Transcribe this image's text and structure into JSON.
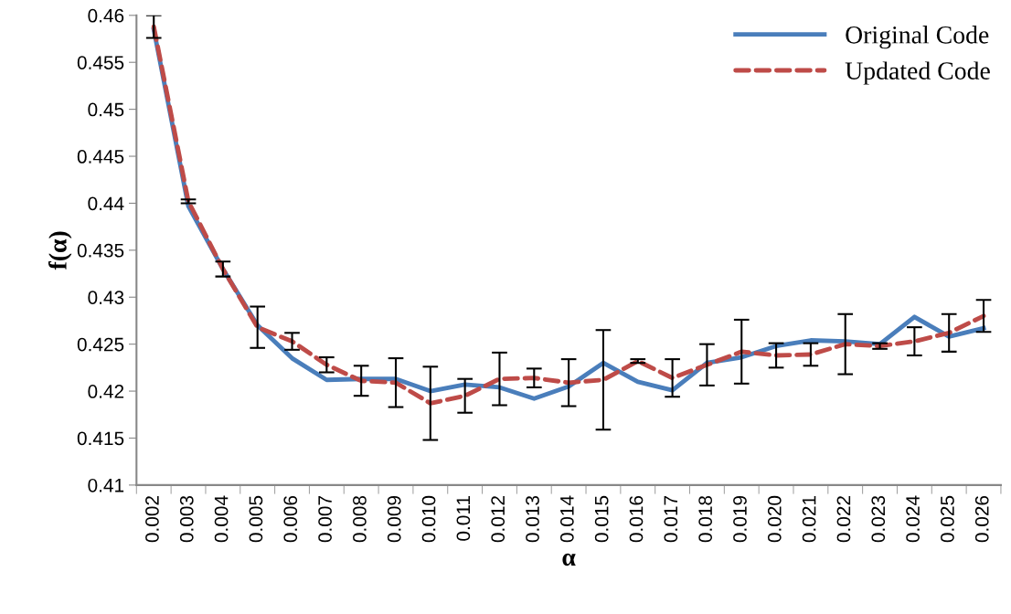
{
  "chart_data": {
    "type": "line",
    "xlabel": "α",
    "ylabel": "f(α)",
    "categories": [
      "0.002",
      "0.003",
      "0.004",
      "0.005",
      "0.006",
      "0.007",
      "0.008",
      "0.009",
      "0.010",
      "0.011",
      "0.012",
      "0.013",
      "0.014",
      "0.015",
      "0.016",
      "0.017",
      "0.018",
      "0.019",
      "0.020",
      "0.021",
      "0.022",
      "0.023",
      "0.024",
      "0.025",
      "0.026"
    ],
    "series": [
      {
        "name": "Original Code",
        "color": "#4a7ebb",
        "line_style": "solid",
        "values": [
          0.4585,
          0.4397,
          0.433,
          0.427,
          0.4235,
          0.4212,
          0.4213,
          0.4213,
          0.42,
          0.4207,
          0.4204,
          0.4192,
          0.4205,
          0.423,
          0.421,
          0.4201,
          0.423,
          0.4236,
          0.4248,
          0.4254,
          0.4253,
          0.425,
          0.4279,
          0.4258,
          0.4267
        ]
      },
      {
        "name": "Updated Code",
        "color": "#be4b48",
        "line_style": "dashed",
        "values": [
          0.4588,
          0.4402,
          0.433,
          0.4268,
          0.4253,
          0.4228,
          0.4211,
          0.4209,
          0.4187,
          0.4195,
          0.4213,
          0.4214,
          0.4209,
          0.4212,
          0.4232,
          0.4214,
          0.4228,
          0.4242,
          0.4238,
          0.4239,
          0.425,
          0.4248,
          0.4253,
          0.4262,
          0.428
        ],
        "errors": [
          0.0012,
          0.0002,
          0.0008,
          0.0022,
          0.0009,
          0.0008,
          0.0016,
          0.0026,
          0.0039,
          0.0018,
          0.0028,
          0.001,
          0.0025,
          0.0053,
          0.0002,
          0.002,
          0.0022,
          0.0034,
          0.0013,
          0.0012,
          0.0032,
          0.0003,
          0.0015,
          0.002,
          0.0017
        ]
      }
    ],
    "ylim": [
      0.41,
      0.46
    ],
    "yticks": [
      0.41,
      0.415,
      0.42,
      0.425,
      0.43,
      0.435,
      0.44,
      0.445,
      0.45,
      0.455,
      0.46
    ],
    "grid": false,
    "legend": "top right",
    "marker": "none"
  }
}
